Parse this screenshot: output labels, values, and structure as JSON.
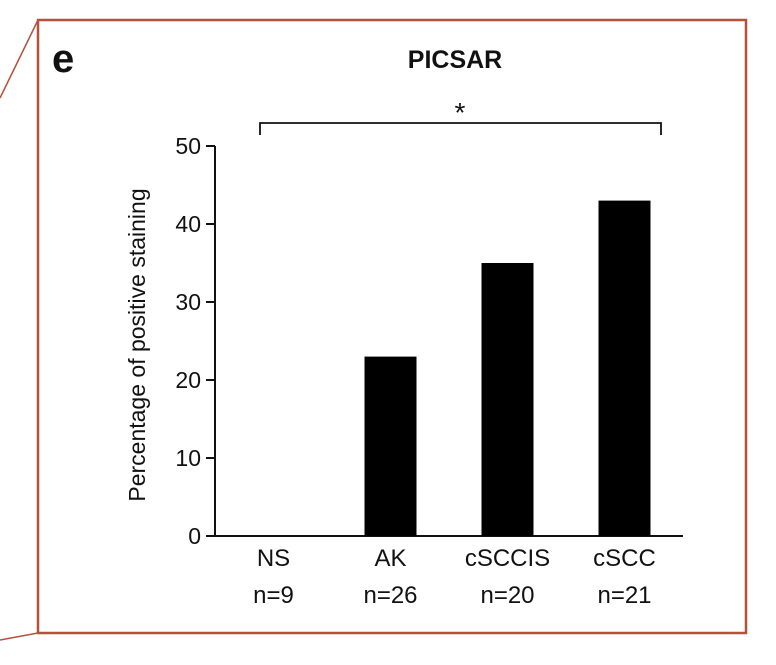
{
  "panel_label": "e",
  "frame_color": "#b5503a",
  "bar_color": "#000000",
  "significance": {
    "symbol": "*",
    "from_category": 0,
    "to_category": 3
  },
  "chart_data": {
    "type": "bar",
    "title": "PICSAR",
    "xlabel": "",
    "ylabel": "Percentage of positive staining",
    "categories": [
      "NS",
      "AK",
      "cSCCIS",
      "cSCC"
    ],
    "category_counts": [
      "n=9",
      "n=26",
      "n=20",
      "n=21"
    ],
    "values": [
      0,
      23,
      35,
      43
    ],
    "ylim": [
      0,
      50
    ],
    "yticks": [
      0,
      10,
      20,
      30,
      40,
      50
    ],
    "grid": false,
    "legend": "none"
  }
}
